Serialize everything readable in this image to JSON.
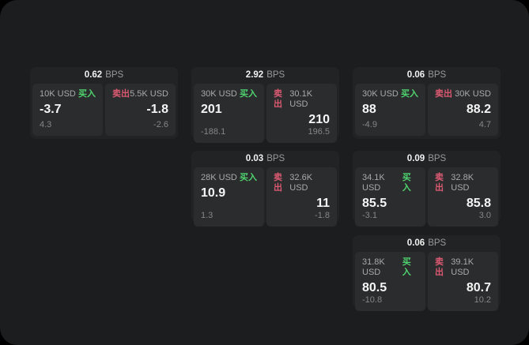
{
  "labels": {
    "buy": "买入",
    "sell": "卖出",
    "bps": "BPS"
  },
  "colors": {
    "buy_accent": "#4fd46f",
    "sell_accent": "#db5a72",
    "panel_bg": "#1c1d1e",
    "card_bg": "#222324",
    "tile_bg": "#2b2c2d",
    "value_text": "#f5f5f5",
    "muted_text": "#868686"
  },
  "cards": [
    {
      "bps": "0.62",
      "buy": {
        "amount": "10K USD",
        "value": "-3.7",
        "delta": "4.3"
      },
      "sell": {
        "amount": "5.5K USD",
        "value": "-1.8",
        "delta": "-2.6"
      }
    },
    {
      "bps": "2.92",
      "buy": {
        "amount": "30K USD",
        "value": "201",
        "delta": "-188.1"
      },
      "sell": {
        "amount": "30.1K USD",
        "value": "210",
        "delta": "196.5"
      }
    },
    {
      "bps": "0.06",
      "buy": {
        "amount": "30K USD",
        "value": "88",
        "delta": "-4.9"
      },
      "sell": {
        "amount": "30K USD",
        "value": "88.2",
        "delta": "4.7"
      }
    },
    {
      "bps": "0.03",
      "buy": {
        "amount": "28K USD",
        "value": "10.9",
        "delta": "1.3"
      },
      "sell": {
        "amount": "32.6K USD",
        "value": "11",
        "delta": "-1.8"
      }
    },
    {
      "bps": "0.09",
      "buy": {
        "amount": "34.1K USD",
        "value": "85.5",
        "delta": "-3.1"
      },
      "sell": {
        "amount": "32.8K USD",
        "value": "85.8",
        "delta": "3.0"
      }
    },
    {
      "bps": "0.06",
      "buy": {
        "amount": "31.8K USD",
        "value": "80.5",
        "delta": "-10.8"
      },
      "sell": {
        "amount": "39.1K USD",
        "value": "80.7",
        "delta": "10.2"
      }
    }
  ]
}
